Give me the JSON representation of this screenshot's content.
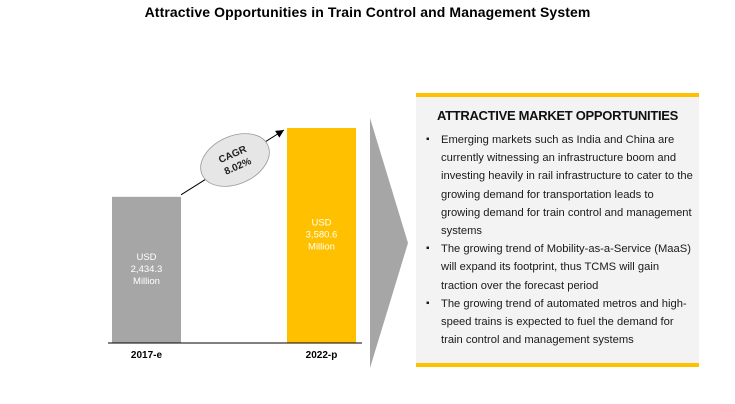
{
  "title": "Attractive Opportunities in Train Control and Management System",
  "chart_data": {
    "type": "bar",
    "categories": [
      "2017-e",
      "2022-p"
    ],
    "values": [
      2434.3,
      3580.6
    ],
    "bar_labels": [
      [
        "USD",
        "2,434.3",
        "Million"
      ],
      [
        "USD",
        "3,580.6",
        "Million"
      ]
    ],
    "bar_colors": [
      "#a6a6a6",
      "#ffc000"
    ],
    "ylim": [
      0,
      3580.6
    ],
    "annotation": {
      "line1": "CAGR",
      "line2": "8.02%"
    }
  },
  "panel": {
    "title": "ATTRACTIVE MARKET OPPORTUNITIES",
    "bullets": [
      "Emerging markets such as India and China are currently witnessing an infrastructure boom and investing heavily in rail infrastructure to cater to the growing demand for transportation leads to growing demand for train control and management systems",
      "The growing trend of Mobility-as-a-Service (MaaS) will expand its footprint, thus TCMS will gain traction over the forecast period",
      "The growing trend of automated metros and high-speed trains is expected to fuel the demand for train control and management systems"
    ]
  },
  "colors": {
    "accent": "#ffc000",
    "grey_bar": "#a6a6a6",
    "arrow": "#a6a6a6",
    "panel_bg": "#f3f3f3"
  }
}
